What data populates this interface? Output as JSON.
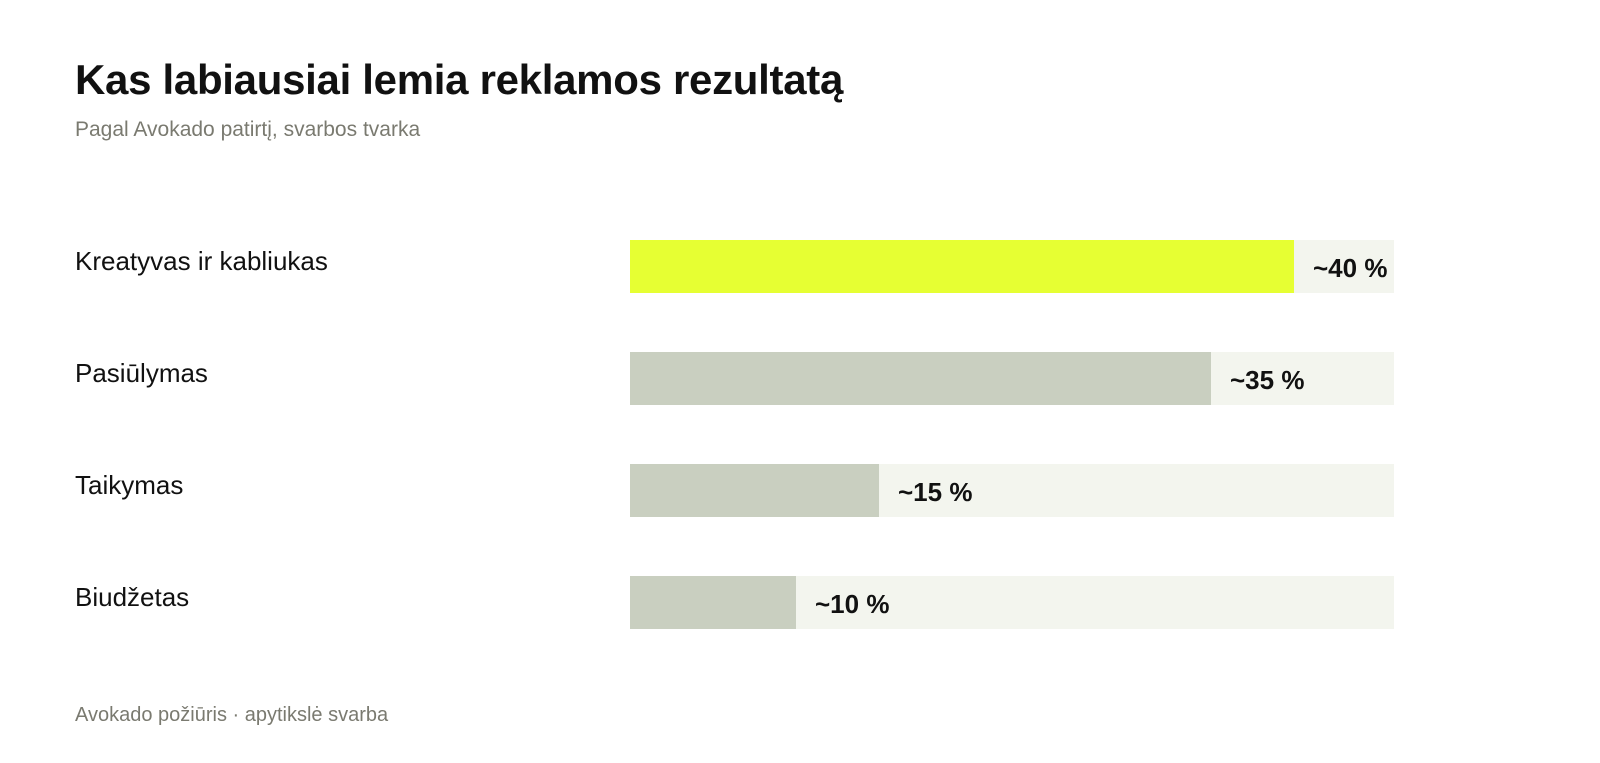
{
  "header": {
    "title": "Kas labiausiai lemia reklamos rezultatą",
    "subtitle": "Pagal Avokado patirtį, svarbos tvarka"
  },
  "footer": {
    "note": "Avokado požiūris · apytikslė svarba"
  },
  "colors": {
    "highlight": "#e6ff33",
    "bar": "#c9cfc0",
    "track": "#f3f5ee",
    "muted_text": "#7a7a70"
  },
  "chart_data": {
    "type": "bar",
    "orientation": "horizontal",
    "categories": [
      "Kreatyvas ir kabliukas",
      "Pasiūlymas",
      "Taikymas",
      "Biudžetas"
    ],
    "values": [
      40,
      35,
      15,
      10
    ],
    "value_labels": [
      "~40 %",
      "~35 %",
      "~15 %",
      "~10 %"
    ],
    "highlighted_index": 0,
    "xlim": [
      0,
      46
    ],
    "unit": "%"
  }
}
